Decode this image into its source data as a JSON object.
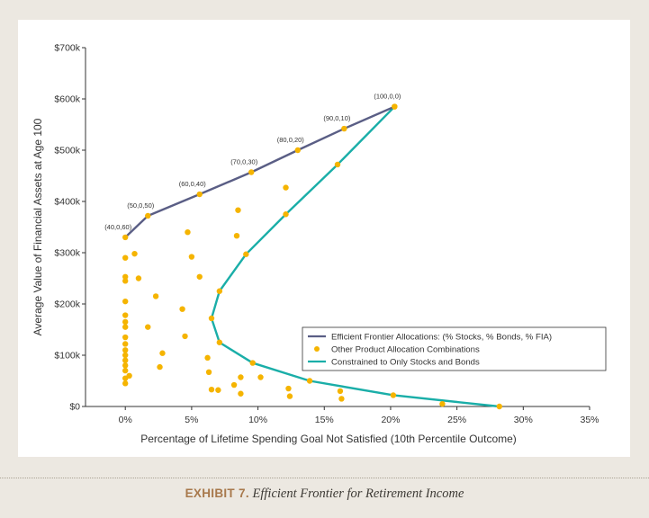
{
  "colors": {
    "frontier": "#5a5e85",
    "constrained": "#1aaea8",
    "dots": "#f5b400",
    "axis": "#333333"
  },
  "chart_data": {
    "type": "scatter",
    "xlabel": "Percentage of Lifetime Spending Goal Not Satisfied (10th Percentile Outcome)",
    "ylabel": "Average Value of Financial Assets at Age 100",
    "xlim": [
      -3,
      35
    ],
    "ylim": [
      0,
      700
    ],
    "x_ticks": [
      0,
      5,
      10,
      15,
      20,
      25,
      30,
      35
    ],
    "x_tick_labels": [
      "0%",
      "5%",
      "10%",
      "15%",
      "20%",
      "25%",
      "30%",
      "35%"
    ],
    "y_ticks": [
      0,
      100,
      200,
      300,
      400,
      500,
      600,
      700
    ],
    "y_tick_labels": [
      "$0",
      "$100k",
      "$200k",
      "$300k",
      "$400k",
      "$500k",
      "$600k",
      "$700k"
    ],
    "legend_position": "bottom-right",
    "series": [
      {
        "name": "Efficient Frontier Allocations: (% Stocks, % Bonds, % FIA)",
        "kind": "line",
        "x": [
          0,
          1.7,
          5.6,
          9.5,
          13.0,
          16.5,
          20.3
        ],
        "y": [
          330,
          372,
          414,
          457,
          500,
          542,
          585
        ],
        "point_labels": [
          "(40,0,60)",
          "(50,0,50)",
          "(60,0,40)",
          "(70,0,30)",
          "(80,0,20)",
          "(90,0,10)",
          "(100,0,0)"
        ]
      },
      {
        "name": "Other Product Allocation Combinations",
        "kind": "scatter",
        "x": [
          0,
          0,
          0,
          0,
          0,
          0,
          0,
          0,
          0,
          0,
          0,
          0,
          0,
          0,
          0,
          0,
          0.3,
          0.7,
          1.0,
          1.7,
          2.3,
          2.6,
          2.8,
          4.3,
          4.5,
          4.7,
          5.0,
          5.6,
          6.2,
          6.3,
          6.5,
          7.0,
          8.2,
          8.4,
          8.5,
          8.7,
          8.7,
          10.2,
          12.1,
          12.3,
          12.4,
          16.2,
          16.3,
          23.9
        ],
        "y": [
          290,
          253,
          245,
          205,
          178,
          165,
          155,
          135,
          122,
          110,
          100,
          90,
          80,
          70,
          55,
          45,
          60,
          298,
          250,
          155,
          215,
          77,
          104,
          190,
          137,
          340,
          292,
          253,
          95,
          67,
          33,
          32,
          42,
          333,
          383,
          25,
          57,
          57,
          427,
          35,
          20,
          30,
          15,
          5
        ]
      },
      {
        "name": "Constrained to Only Stocks and Bonds",
        "kind": "line",
        "x": [
          20.3,
          16.0,
          12.1,
          9.1,
          7.1,
          6.5,
          7.1,
          9.6,
          13.9,
          20.2,
          28.2
        ],
        "y": [
          585,
          472,
          375,
          297,
          225,
          172,
          125,
          85,
          50,
          22,
          0
        ]
      }
    ]
  },
  "caption": {
    "label": "EXHIBIT 7.",
    "text": "Efficient Frontier for Retirement Income"
  }
}
